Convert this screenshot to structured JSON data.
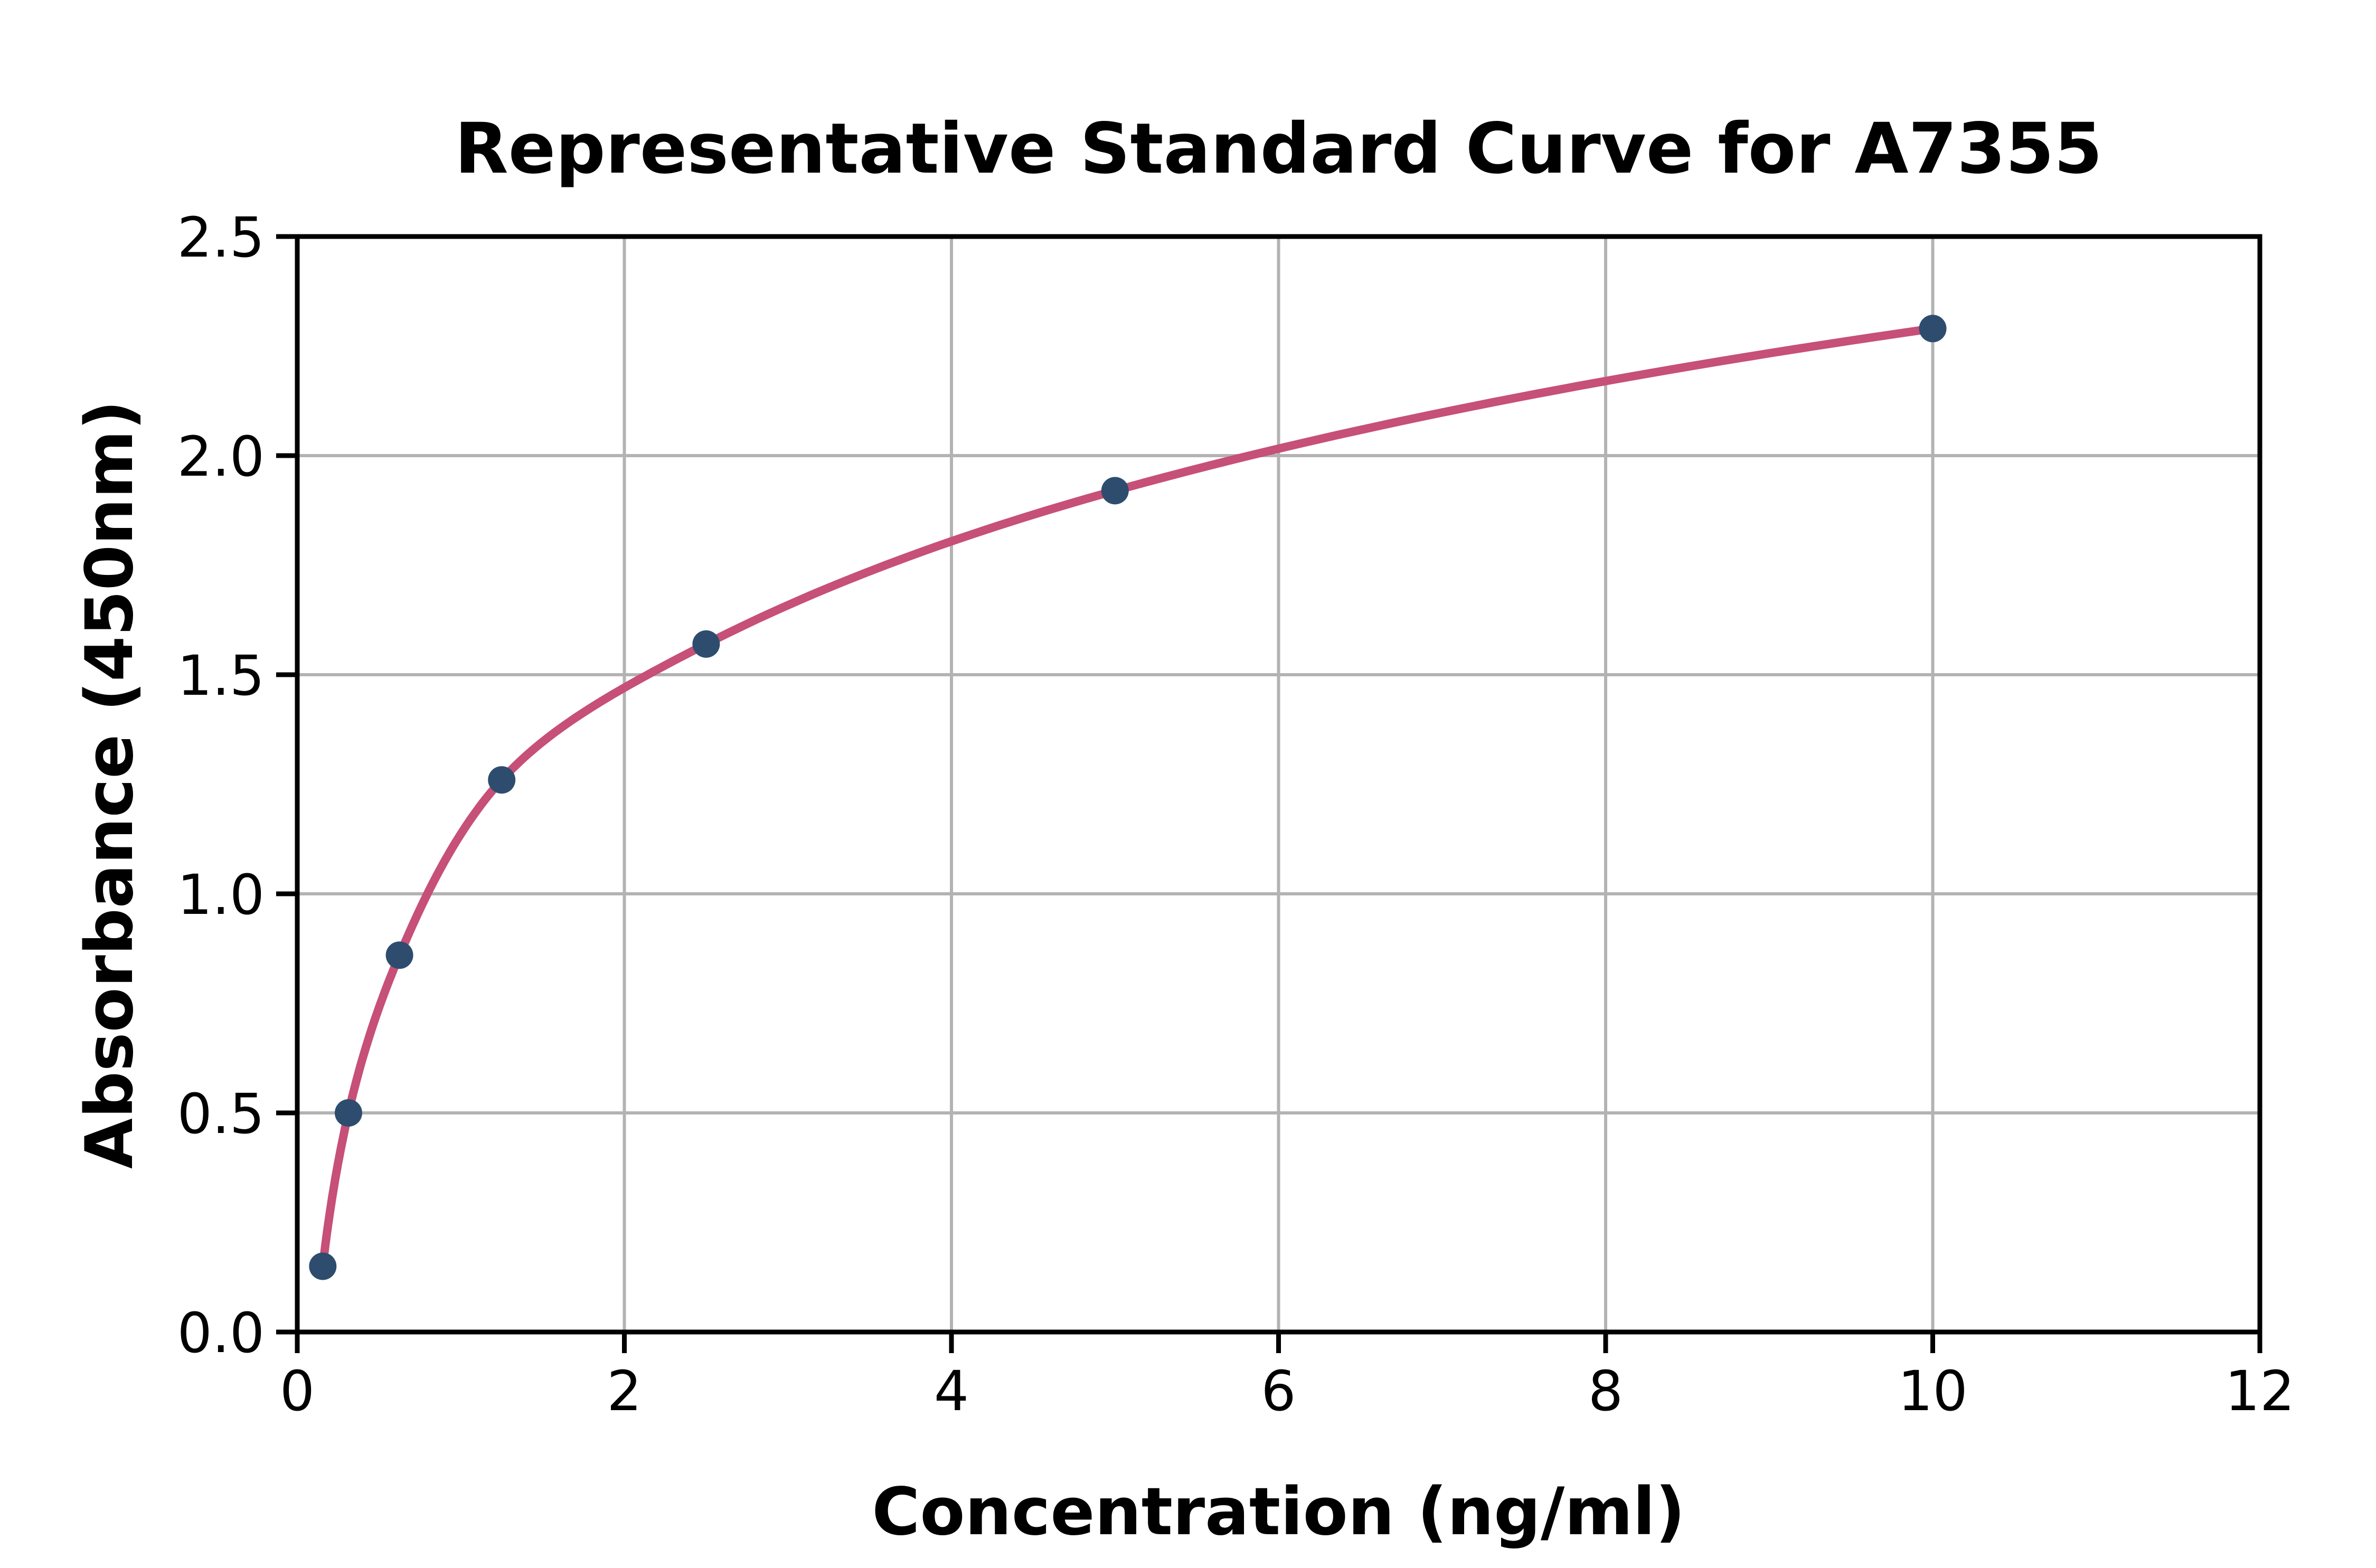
{
  "figure": {
    "background": "#ffffff"
  },
  "chart_data": {
    "type": "scatter",
    "title": "Representative Standard Curve for A7355",
    "xlabel": "Concentration (ng/ml)",
    "ylabel": "Absorbance (450nm)",
    "x": [
      0.156,
      0.313,
      0.625,
      1.25,
      2.5,
      5,
      10
    ],
    "y": [
      0.15,
      0.5,
      0.86,
      1.26,
      1.57,
      1.92,
      2.29
    ],
    "fit_curve": "smooth 4PL-style fit through all points, drawn from first to last point",
    "xlim": [
      0,
      12
    ],
    "ylim": [
      0,
      2.5
    ],
    "x_ticks": [
      0,
      2,
      4,
      6,
      8,
      10,
      12
    ],
    "x_tick_labels": [
      "0",
      "2",
      "4",
      "6",
      "8",
      "10",
      "12"
    ],
    "y_ticks": [
      0,
      0.5,
      1.0,
      1.5,
      2.0,
      2.5
    ],
    "y_tick_labels": [
      "0.0",
      "0.5",
      "1.0",
      "1.5",
      "2.0",
      "2.5"
    ],
    "grid": true,
    "legend_position": "none",
    "colors": {
      "curve": "#c65077",
      "marker": "#2e4d6e",
      "grid": "#b3b3b3",
      "spine": "#000000",
      "text": "#000000"
    }
  }
}
